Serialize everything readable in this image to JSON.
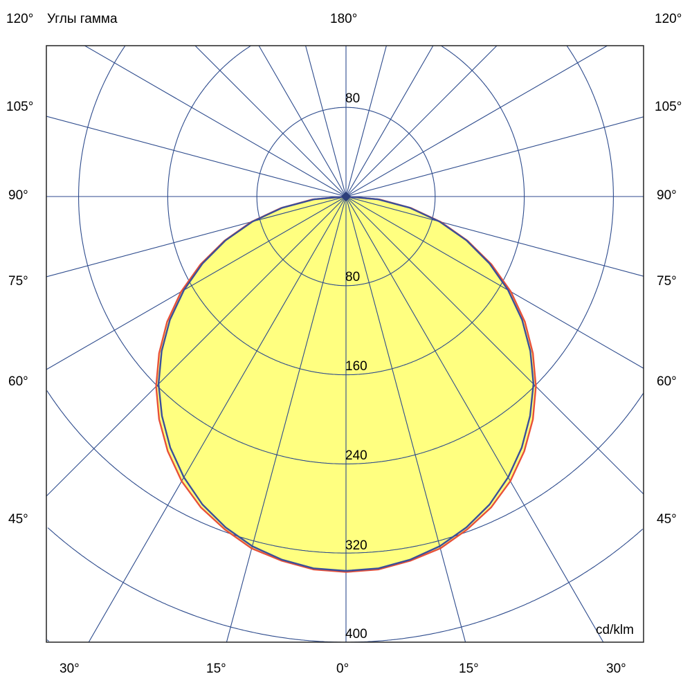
{
  "chart_data": {
    "type": "polar",
    "title": "Углы гамма",
    "unit": "cd/klm",
    "radial_ticks": [
      80,
      160,
      240,
      320,
      400
    ],
    "radial_tick_top": "80",
    "angle_labels": {
      "left": [
        "120°",
        "105°",
        "90°",
        "75°",
        "60°",
        "45°"
      ],
      "right": [
        "120°",
        "105°",
        "90°",
        "75°",
        "60°",
        "45°"
      ],
      "top": "180°",
      "bottom": [
        "30°",
        "15°",
        "0°",
        "15°",
        "30°"
      ]
    },
    "grid": true,
    "spoke_step_deg": 15,
    "gamma": [
      0,
      5,
      10,
      15,
      20,
      25,
      30,
      35,
      40,
      45,
      50,
      55,
      60,
      65,
      70,
      75,
      80,
      85,
      90
    ],
    "series": [
      {
        "color": "#e8503a",
        "values": [
          337,
          336,
          332,
          327,
          318,
          308,
          295,
          279,
          261,
          241,
          219,
          196,
          171,
          144,
          116,
          88,
          59,
          30,
          0
        ]
      },
      {
        "color": "#3a4f9a",
        "values": [
          336,
          335,
          331,
          325,
          316,
          305,
          291,
          275,
          257,
          238,
          216,
          193,
          168,
          142,
          115,
          87,
          58,
          29,
          0
        ]
      }
    ],
    "fill_color": "#ffff80",
    "grid_color": "#2c4a8c"
  }
}
